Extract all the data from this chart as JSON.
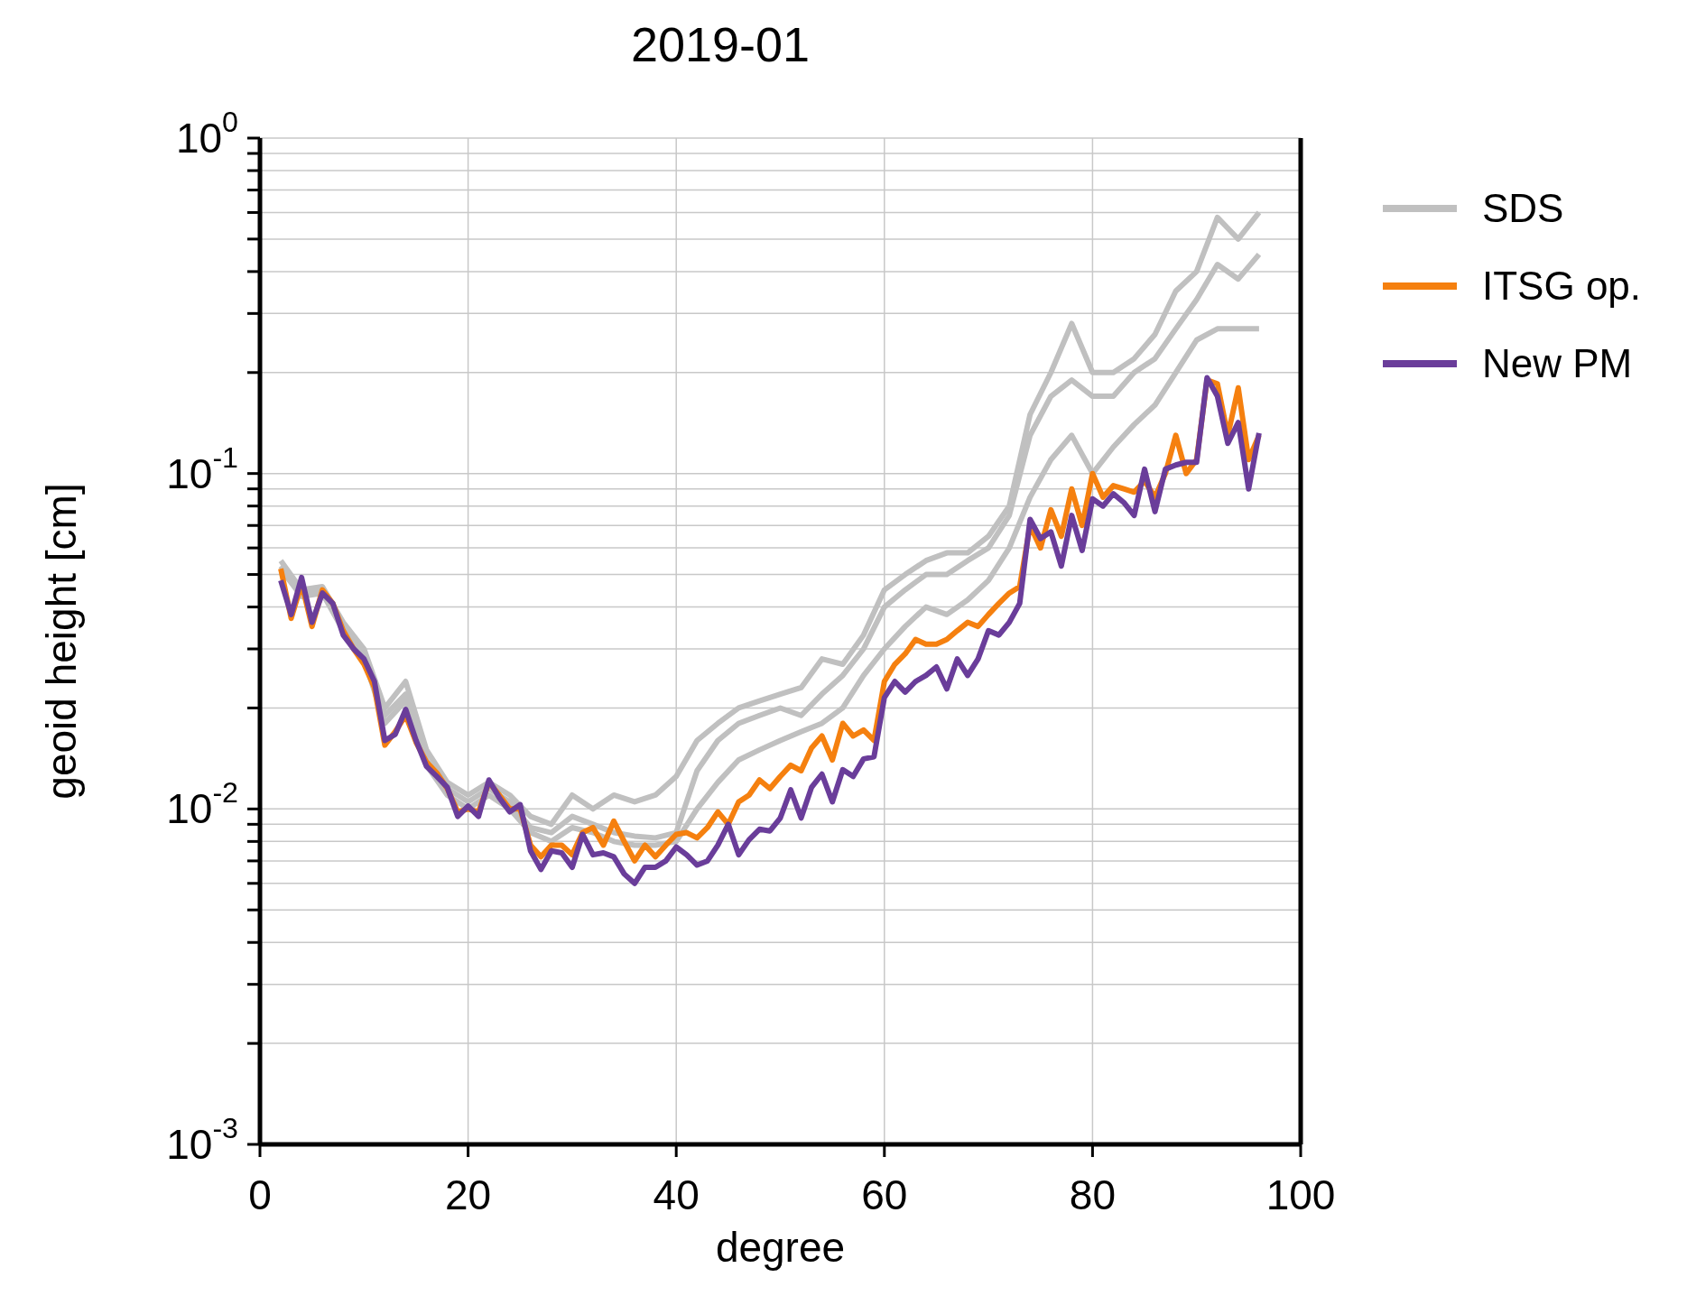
{
  "chart_data": {
    "type": "line",
    "title": "2019-01",
    "xlabel": "degree",
    "ylabel": "geoid height [cm]",
    "x": [
      2,
      3,
      4,
      5,
      6,
      7,
      8,
      9,
      10,
      11,
      12,
      13,
      14,
      15,
      16,
      17,
      18,
      19,
      20,
      21,
      22,
      23,
      24,
      25,
      26,
      27,
      28,
      29,
      30,
      31,
      32,
      33,
      34,
      35,
      36,
      37,
      38,
      39,
      40,
      41,
      42,
      43,
      44,
      45,
      46,
      47,
      48,
      49,
      50,
      51,
      52,
      53,
      54,
      55,
      56,
      57,
      58,
      59,
      60,
      61,
      62,
      63,
      64,
      65,
      66,
      67,
      68,
      69,
      70,
      71,
      72,
      73,
      74,
      75,
      76,
      77,
      78,
      79,
      80,
      81,
      82,
      83,
      84,
      85,
      86,
      87,
      88,
      89,
      90,
      91,
      92,
      93,
      94,
      95,
      96
    ],
    "series": [
      {
        "name": "SDS",
        "color": "#c0c0c0",
        "x": [
          2,
          4,
          6,
          8,
          10,
          12,
          14,
          16,
          18,
          20,
          22,
          24,
          26,
          28,
          30,
          32,
          34,
          36,
          38,
          40,
          42,
          44,
          46,
          48,
          50,
          52,
          54,
          56,
          58,
          60,
          62,
          64,
          66,
          68,
          70,
          72,
          74,
          76,
          78,
          80,
          82,
          84,
          86,
          88,
          90,
          92,
          94,
          96
        ],
        "values": [
          0.055,
          0.045,
          0.046,
          0.036,
          0.03,
          0.02,
          0.024,
          0.015,
          0.012,
          0.011,
          0.012,
          0.011,
          0.0095,
          0.009,
          0.011,
          0.01,
          0.011,
          0.0105,
          0.011,
          0.0125,
          0.016,
          0.018,
          0.02,
          0.021,
          0.022,
          0.023,
          0.028,
          0.027,
          0.033,
          0.045,
          0.05,
          0.055,
          0.058,
          0.058,
          0.065,
          0.08,
          0.15,
          0.2,
          0.28,
          0.2,
          0.2,
          0.22,
          0.26,
          0.35,
          0.4,
          0.58,
          0.5,
          0.6
        ]
      },
      {
        "color": "#c0c0c0",
        "x": [
          2,
          4,
          6,
          8,
          10,
          12,
          14,
          16,
          18,
          20,
          22,
          24,
          26,
          28,
          30,
          32,
          34,
          36,
          38,
          40,
          42,
          44,
          46,
          48,
          50,
          52,
          54,
          56,
          58,
          60,
          62,
          64,
          66,
          68,
          70,
          72,
          74,
          76,
          78,
          80,
          82,
          84,
          86,
          88,
          90,
          92,
          94,
          96
        ],
        "values": [
          0.053,
          0.044,
          0.045,
          0.035,
          0.029,
          0.019,
          0.022,
          0.014,
          0.0115,
          0.0105,
          0.0115,
          0.0105,
          0.0088,
          0.0085,
          0.0095,
          0.009,
          0.0085,
          0.0083,
          0.0082,
          0.0085,
          0.013,
          0.016,
          0.018,
          0.019,
          0.02,
          0.019,
          0.022,
          0.025,
          0.03,
          0.04,
          0.045,
          0.05,
          0.05,
          0.055,
          0.06,
          0.075,
          0.13,
          0.17,
          0.19,
          0.17,
          0.17,
          0.2,
          0.22,
          0.27,
          0.33,
          0.42,
          0.38,
          0.45
        ]
      },
      {
        "color": "#c0c0c0",
        "x": [
          2,
          4,
          6,
          8,
          10,
          12,
          14,
          16,
          18,
          20,
          22,
          24,
          26,
          28,
          30,
          32,
          34,
          36,
          38,
          40,
          42,
          44,
          46,
          48,
          50,
          52,
          54,
          56,
          58,
          60,
          62,
          64,
          66,
          68,
          70,
          72,
          74,
          76,
          78,
          80,
          82,
          84,
          86,
          88,
          90,
          92,
          94,
          96
        ],
        "values": [
          0.052,
          0.043,
          0.044,
          0.034,
          0.028,
          0.018,
          0.021,
          0.0135,
          0.011,
          0.01,
          0.011,
          0.01,
          0.0085,
          0.008,
          0.0088,
          0.0085,
          0.008,
          0.0078,
          0.0078,
          0.008,
          0.01,
          0.012,
          0.014,
          0.015,
          0.016,
          0.017,
          0.018,
          0.02,
          0.025,
          0.03,
          0.035,
          0.04,
          0.038,
          0.042,
          0.048,
          0.06,
          0.085,
          0.11,
          0.13,
          0.1,
          0.12,
          0.14,
          0.16,
          0.2,
          0.25,
          0.27,
          0.27,
          0.27
        ]
      },
      {
        "name": "ITSG op.",
        "color": "#f5800f",
        "values": [
          0.052,
          0.037,
          0.047,
          0.035,
          0.045,
          0.041,
          0.034,
          0.03,
          0.027,
          0.023,
          0.0155,
          0.017,
          0.019,
          0.0158,
          0.0138,
          0.0128,
          0.0115,
          0.0098,
          0.01,
          0.0098,
          0.012,
          0.011,
          0.01,
          0.01,
          0.0078,
          0.0072,
          0.0078,
          0.0078,
          0.0073,
          0.0085,
          0.0088,
          0.0078,
          0.0092,
          0.008,
          0.007,
          0.0078,
          0.0072,
          0.0078,
          0.0084,
          0.0085,
          0.0082,
          0.0088,
          0.0098,
          0.009,
          0.0105,
          0.011,
          0.0122,
          0.0115,
          0.0125,
          0.0135,
          0.013,
          0.0152,
          0.0165,
          0.014,
          0.018,
          0.0165,
          0.0172,
          0.016,
          0.024,
          0.027,
          0.029,
          0.032,
          0.031,
          0.031,
          0.032,
          0.034,
          0.036,
          0.035,
          0.038,
          0.041,
          0.044,
          0.046,
          0.07,
          0.06,
          0.078,
          0.065,
          0.09,
          0.07,
          0.1,
          0.085,
          0.092,
          0.09,
          0.088,
          0.095,
          0.085,
          0.1,
          0.13,
          0.1,
          0.11,
          0.19,
          0.185,
          0.13,
          0.18,
          0.11,
          0.13
        ]
      },
      {
        "name": "New PM",
        "color": "#6a3d9a",
        "values": [
          0.048,
          0.038,
          0.049,
          0.036,
          0.044,
          0.041,
          0.033,
          0.03,
          0.028,
          0.024,
          0.016,
          0.0167,
          0.0198,
          0.016,
          0.0134,
          0.0125,
          0.0116,
          0.0095,
          0.0102,
          0.0095,
          0.0122,
          0.0108,
          0.0098,
          0.0103,
          0.0075,
          0.0066,
          0.0075,
          0.0074,
          0.0067,
          0.0084,
          0.0073,
          0.0074,
          0.0072,
          0.0064,
          0.006,
          0.0067,
          0.0067,
          0.007,
          0.0077,
          0.0073,
          0.0068,
          0.007,
          0.0078,
          0.009,
          0.0073,
          0.0081,
          0.0087,
          0.0086,
          0.0094,
          0.0114,
          0.0094,
          0.0116,
          0.0127,
          0.0105,
          0.0131,
          0.0125,
          0.0141,
          0.0143,
          0.0215,
          0.024,
          0.0223,
          0.024,
          0.025,
          0.0265,
          0.0228,
          0.028,
          0.025,
          0.028,
          0.034,
          0.033,
          0.036,
          0.041,
          0.073,
          0.064,
          0.067,
          0.053,
          0.075,
          0.059,
          0.084,
          0.08,
          0.087,
          0.082,
          0.075,
          0.103,
          0.077,
          0.103,
          0.106,
          0.108,
          0.108,
          0.193,
          0.17,
          0.123,
          0.142,
          0.09,
          0.132
        ]
      }
    ],
    "xlim": [
      0,
      100
    ],
    "xticks": [
      0,
      20,
      40,
      60,
      80,
      100
    ],
    "ylim": [
      0.001,
      1
    ],
    "log": "y",
    "yticks": [
      {
        "value": 0.001,
        "label": "10$^{-3}$"
      },
      {
        "value": 0.002,
        "label": null
      },
      {
        "value": 0.003,
        "label": null
      },
      {
        "value": 0.004,
        "label": null
      },
      {
        "value": 0.005,
        "label": null
      },
      {
        "value": 0.006,
        "label": null
      },
      {
        "value": 0.007,
        "label": null
      },
      {
        "value": 0.008,
        "label": null
      },
      {
        "value": 0.009,
        "label": null
      },
      {
        "value": 0.01,
        "label": "10$^{-2}$"
      },
      {
        "value": 0.02,
        "label": null
      },
      {
        "value": 0.03,
        "label": null
      },
      {
        "value": 0.04,
        "label": null
      },
      {
        "value": 0.05,
        "label": null
      },
      {
        "value": 0.06,
        "label": null
      },
      {
        "value": 0.07,
        "label": null
      },
      {
        "value": 0.08,
        "label": null
      },
      {
        "value": 0.09,
        "label": null
      },
      {
        "value": 0.1,
        "label": "10$^{-1}$"
      },
      {
        "value": 0.2,
        "label": null
      },
      {
        "value": 0.3,
        "label": null
      },
      {
        "value": 0.4,
        "label": null
      },
      {
        "value": 0.5,
        "label": null
      },
      {
        "value": 0.6,
        "label": null
      },
      {
        "value": 0.7,
        "label": null
      },
      {
        "value": 0.8,
        "label": null
      },
      {
        "value": 0.9,
        "label": null
      },
      {
        "value": 1,
        "label": "10$^{0}$"
      }
    ],
    "grid": true,
    "legend": "top right",
    "marker": "none",
    "line_style": "solid"
  }
}
